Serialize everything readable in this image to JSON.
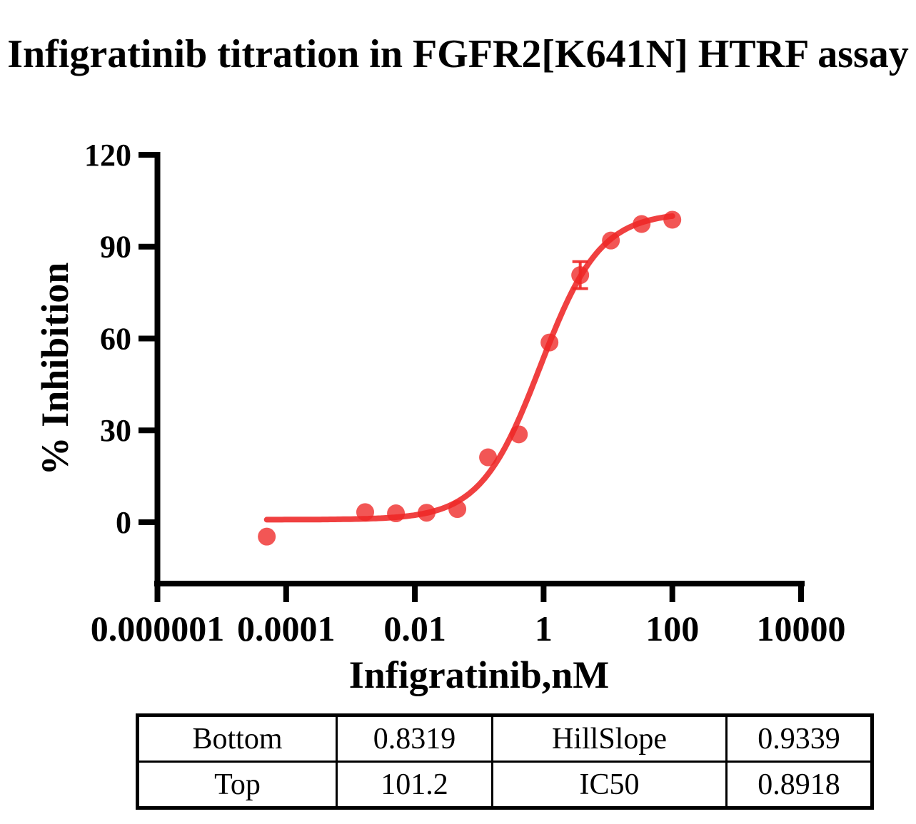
{
  "title": "Infigratinib titration in FGFR2[K641N] HTRF assay",
  "chart_data": {
    "type": "scatter",
    "title": "Infigratinib titration in FGFR2[K641N] HTRF assay",
    "xlabel": "Infigratinib,nM",
    "ylabel": "% Inhibition",
    "x_scale": "log",
    "xlim": [
      1e-06,
      10000
    ],
    "ylim": [
      -20,
      120
    ],
    "grid": false,
    "x_ticks": [
      {
        "value": 1e-06,
        "label": "0.000001"
      },
      {
        "value": 0.0001,
        "label": "0.0001"
      },
      {
        "value": 0.01,
        "label": "0.01"
      },
      {
        "value": 1,
        "label": "1"
      },
      {
        "value": 100,
        "label": "100"
      },
      {
        "value": 10000,
        "label": "10000"
      }
    ],
    "y_ticks": [
      {
        "value": 0,
        "label": "0"
      },
      {
        "value": 30,
        "label": "30"
      },
      {
        "value": 60,
        "label": "60"
      },
      {
        "value": 90,
        "label": "90"
      },
      {
        "value": 120,
        "label": "120"
      }
    ],
    "series": [
      {
        "name": "Infigratinib",
        "color": "#EE2625",
        "points": [
          {
            "x": 5e-05,
            "y": -4.7
          },
          {
            "x": 0.00169,
            "y": 3.3
          },
          {
            "x": 0.00508,
            "y": 2.9
          },
          {
            "x": 0.0152,
            "y": 3.1
          },
          {
            "x": 0.0457,
            "y": 4.3
          },
          {
            "x": 0.137,
            "y": 21.2
          },
          {
            "x": 0.412,
            "y": 28.7
          },
          {
            "x": 1.235,
            "y": 58.7
          },
          {
            "x": 3.704,
            "y": 80.7,
            "err": 4.4
          },
          {
            "x": 11.11,
            "y": 92.0
          },
          {
            "x": 33.33,
            "y": 97.4
          },
          {
            "x": 100,
            "y": 98.8
          }
        ],
        "fit": {
          "model": "four-parameter logistic",
          "bottom": 0.8319,
          "top": 101.2,
          "hillslope": 0.9339,
          "ic50": 0.8918,
          "curve_x_range": [
            5e-05,
            100
          ]
        }
      }
    ]
  },
  "table": {
    "rows": [
      [
        "Bottom",
        "0.8319",
        "HillSlope",
        "0.9339"
      ],
      [
        "Top",
        "101.2",
        "IC50",
        "0.8918"
      ]
    ]
  }
}
